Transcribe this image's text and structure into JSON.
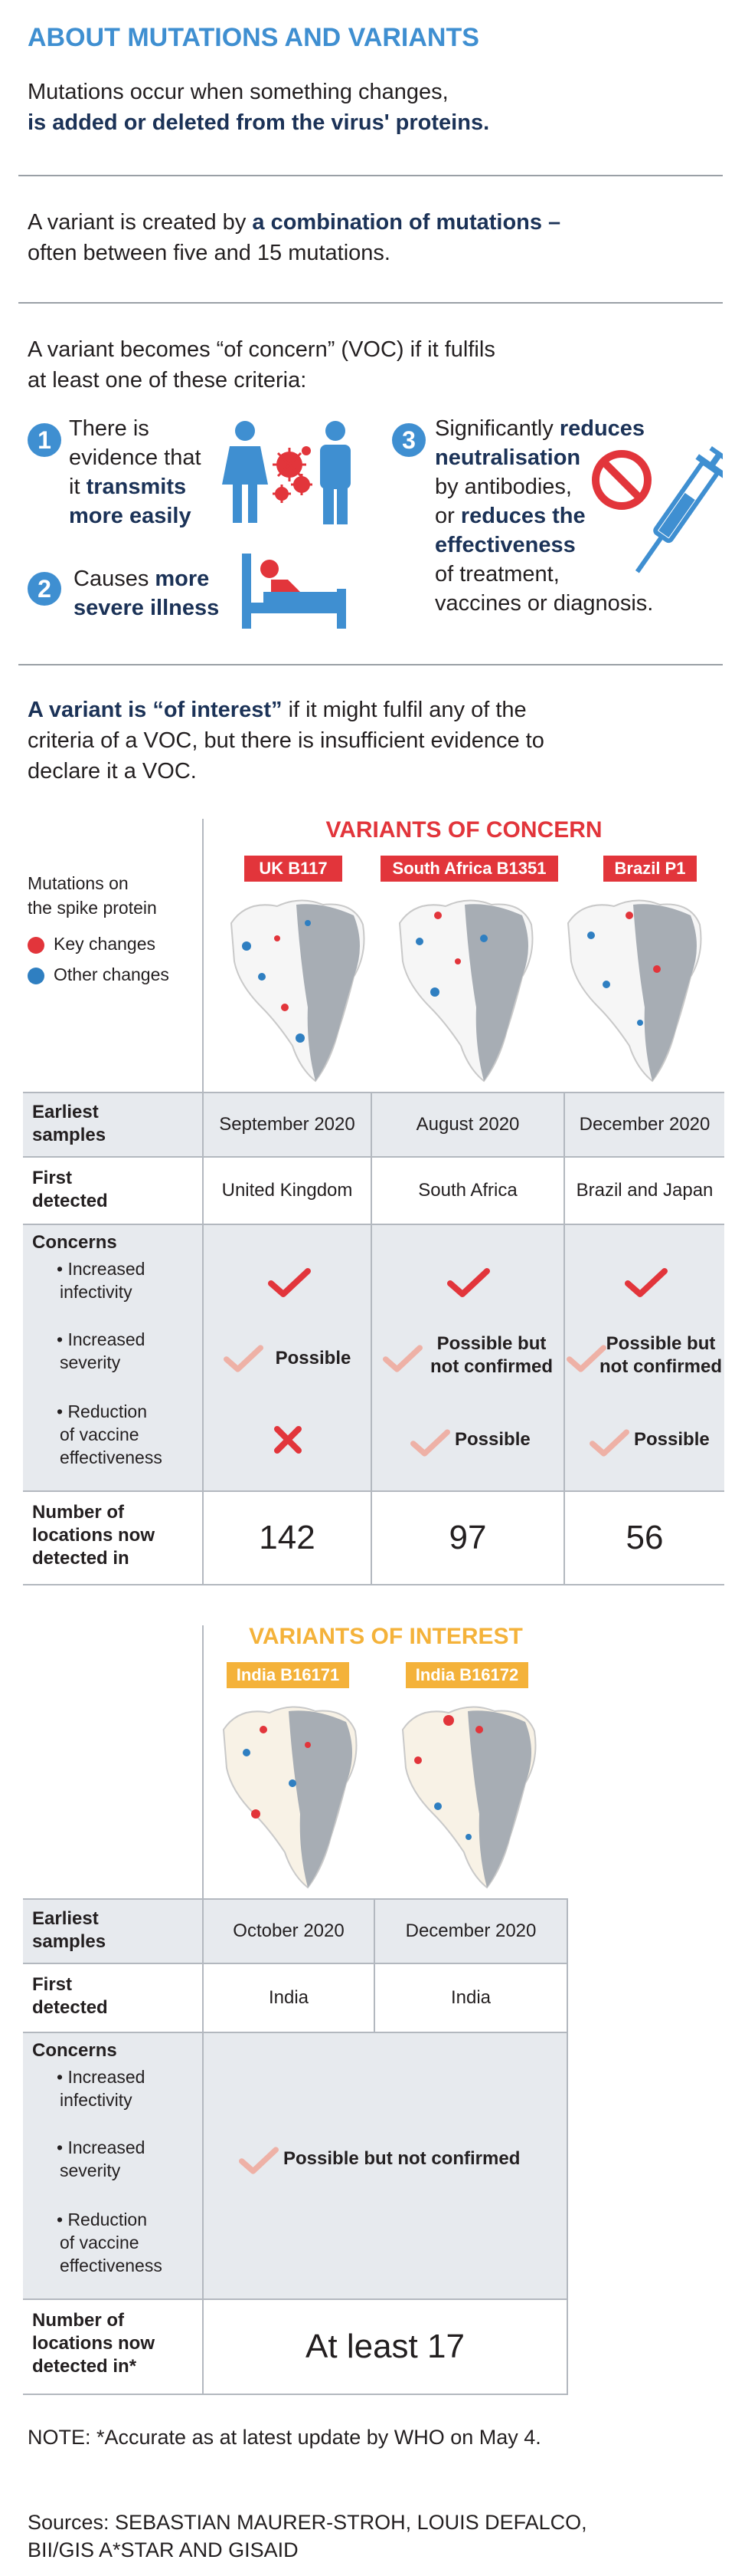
{
  "header": {
    "title": "ABOUT MUTATIONS AND VARIANTS"
  },
  "intro": {
    "mutation_plain": "Mutations occur when something changes,",
    "mutation_bold": "is added or deleted from the virus' proteins.",
    "variant_plain1": "A variant is created by",
    "variant_bold": "a combination of mutations –",
    "variant_plain2": "often between five and 15 mutations.",
    "voc_line1": "A variant becomes “of concern” (VOC) if it fulfils",
    "voc_line2": "at least one of these criteria:"
  },
  "criteria": [
    {
      "num": "1",
      "l1": "There is",
      "l2": "evidence that",
      "l3": "it",
      "l3b": "transmits",
      "l4b": "more easily"
    },
    {
      "num": "2",
      "l1": "Causes",
      "l1b": "more",
      "l2b": "severe illness"
    },
    {
      "num": "3",
      "l1": "Significantly",
      "l1b": "reduces",
      "l2b": "neutralisation",
      "l3": "by antibodies,",
      "l4": "or",
      "l4b": "reduces the",
      "l5b": "effectiveness",
      "l6": "of treatment,",
      "l7": "vaccines or diagnosis."
    }
  ],
  "voi_intro": {
    "bold": "A variant is “of interest”",
    "rest1": " if it might fulfil any of the",
    "rest2": "criteria of a VOC, but there is insufficient evidence to",
    "rest3": "declare it a VOC."
  },
  "legend": {
    "title1": "Mutations on",
    "title2": "the spike protein",
    "key": "Key changes",
    "other": "Other changes",
    "key_color": "#e2353b",
    "other_color": "#2f7fc1"
  },
  "voc": {
    "heading": "VARIANTS OF CONCERN",
    "variants": [
      "UK B117",
      "South Africa B1351",
      "Brazil P1"
    ],
    "rows": {
      "earliest_label1": "Earliest",
      "earliest_label2": "samples",
      "earliest": [
        "September 2020",
        "August 2020",
        "December 2020"
      ],
      "first_label1": "First",
      "first_label2": "detected",
      "first": [
        "United Kingdom",
        "South Africa",
        "Brazil and Japan"
      ],
      "concerns_label": "Concerns",
      "infect_label1": "• Increased",
      "infect_label2": "infectivity",
      "severity_label1": "• Increased",
      "severity_label2": "severity",
      "severity": [
        [
          "Possible",
          ""
        ],
        [
          "Possible but",
          "not confirmed"
        ],
        [
          "Possible but",
          "not confirmed"
        ]
      ],
      "vaccine_label1": "• Reduction",
      "vaccine_label2": "of vaccine",
      "vaccine_label3": "effectiveness",
      "vaccine": [
        "",
        "Possible",
        "Possible"
      ],
      "locations_label1": "Number of",
      "locations_label2": "locations now",
      "locations_label3": "detected in",
      "locations": [
        "142",
        "97",
        "56"
      ]
    }
  },
  "voi": {
    "heading": "VARIANTS OF INTEREST",
    "variants": [
      "India B16171",
      "India B16172"
    ],
    "rows": {
      "earliest": [
        "October 2020",
        "December 2020"
      ],
      "first": [
        "India",
        "India"
      ],
      "concerns_text": "Possible but not confirmed",
      "locations_label3": "detected in*",
      "locations": "At least 17"
    }
  },
  "colors": {
    "accent_blue": "#3f8fd1",
    "navy": "#1b3257",
    "red": "#e2353b",
    "yellow": "#f4b23a",
    "check_pink": "#eeb1a6"
  },
  "footer": {
    "note": "NOTE: *Accurate as at latest update by WHO on May 4.",
    "sources1": "Sources: SEBASTIAN MAURER-STROH, LOUIS DEFALCO,",
    "sources2": "BII/GIS A*STAR AND GISAID"
  }
}
